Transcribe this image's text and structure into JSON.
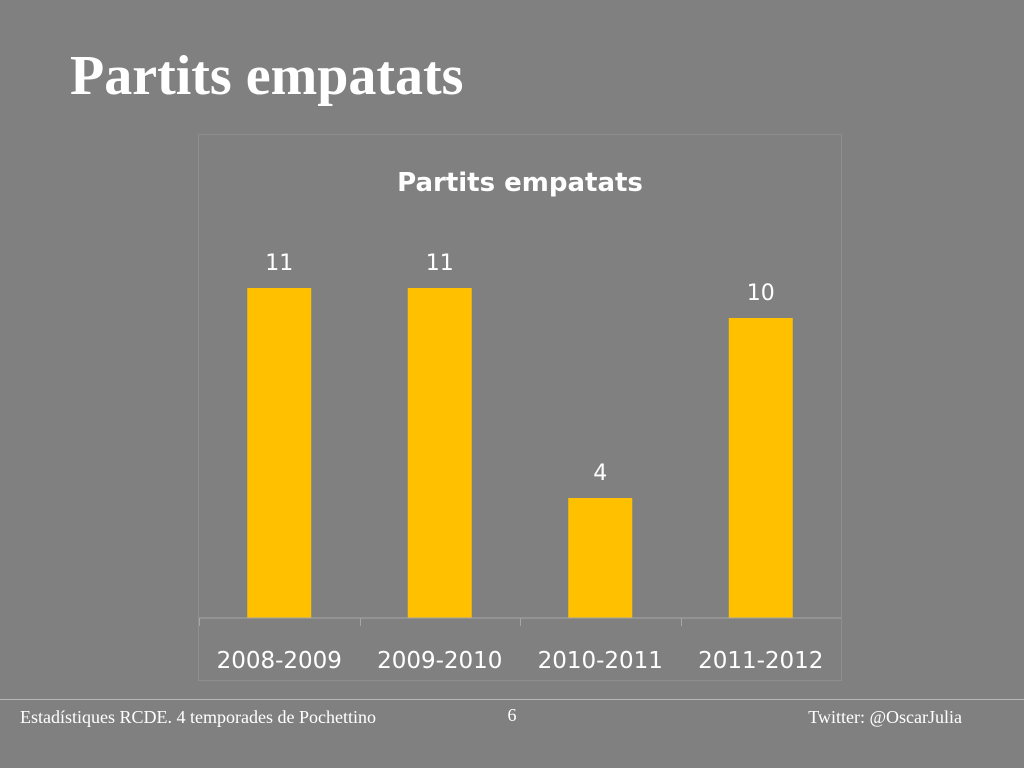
{
  "slide": {
    "title": "Partits empatats",
    "footer_left": "Estadístiques RCDE. 4 temporades de Pochettino",
    "page_number": "6",
    "footer_right": "Twitter: @OscarJulia"
  },
  "chart_data": {
    "type": "bar",
    "title": "Partits empatats",
    "categories": [
      "2008-2009",
      "2009-2010",
      "2010-2011",
      "2011-2012"
    ],
    "values": [
      11,
      11,
      4,
      10
    ],
    "xlabel": "",
    "ylabel": "",
    "ylim": [
      0,
      12.6
    ],
    "grid": false,
    "legend": "none",
    "data_labels": true,
    "colors": {
      "bar": "#FFC000",
      "text": "#FFFFFF",
      "axis": "#A6A6A6",
      "frame": "#8E8E8E",
      "background": "#808080"
    }
  }
}
